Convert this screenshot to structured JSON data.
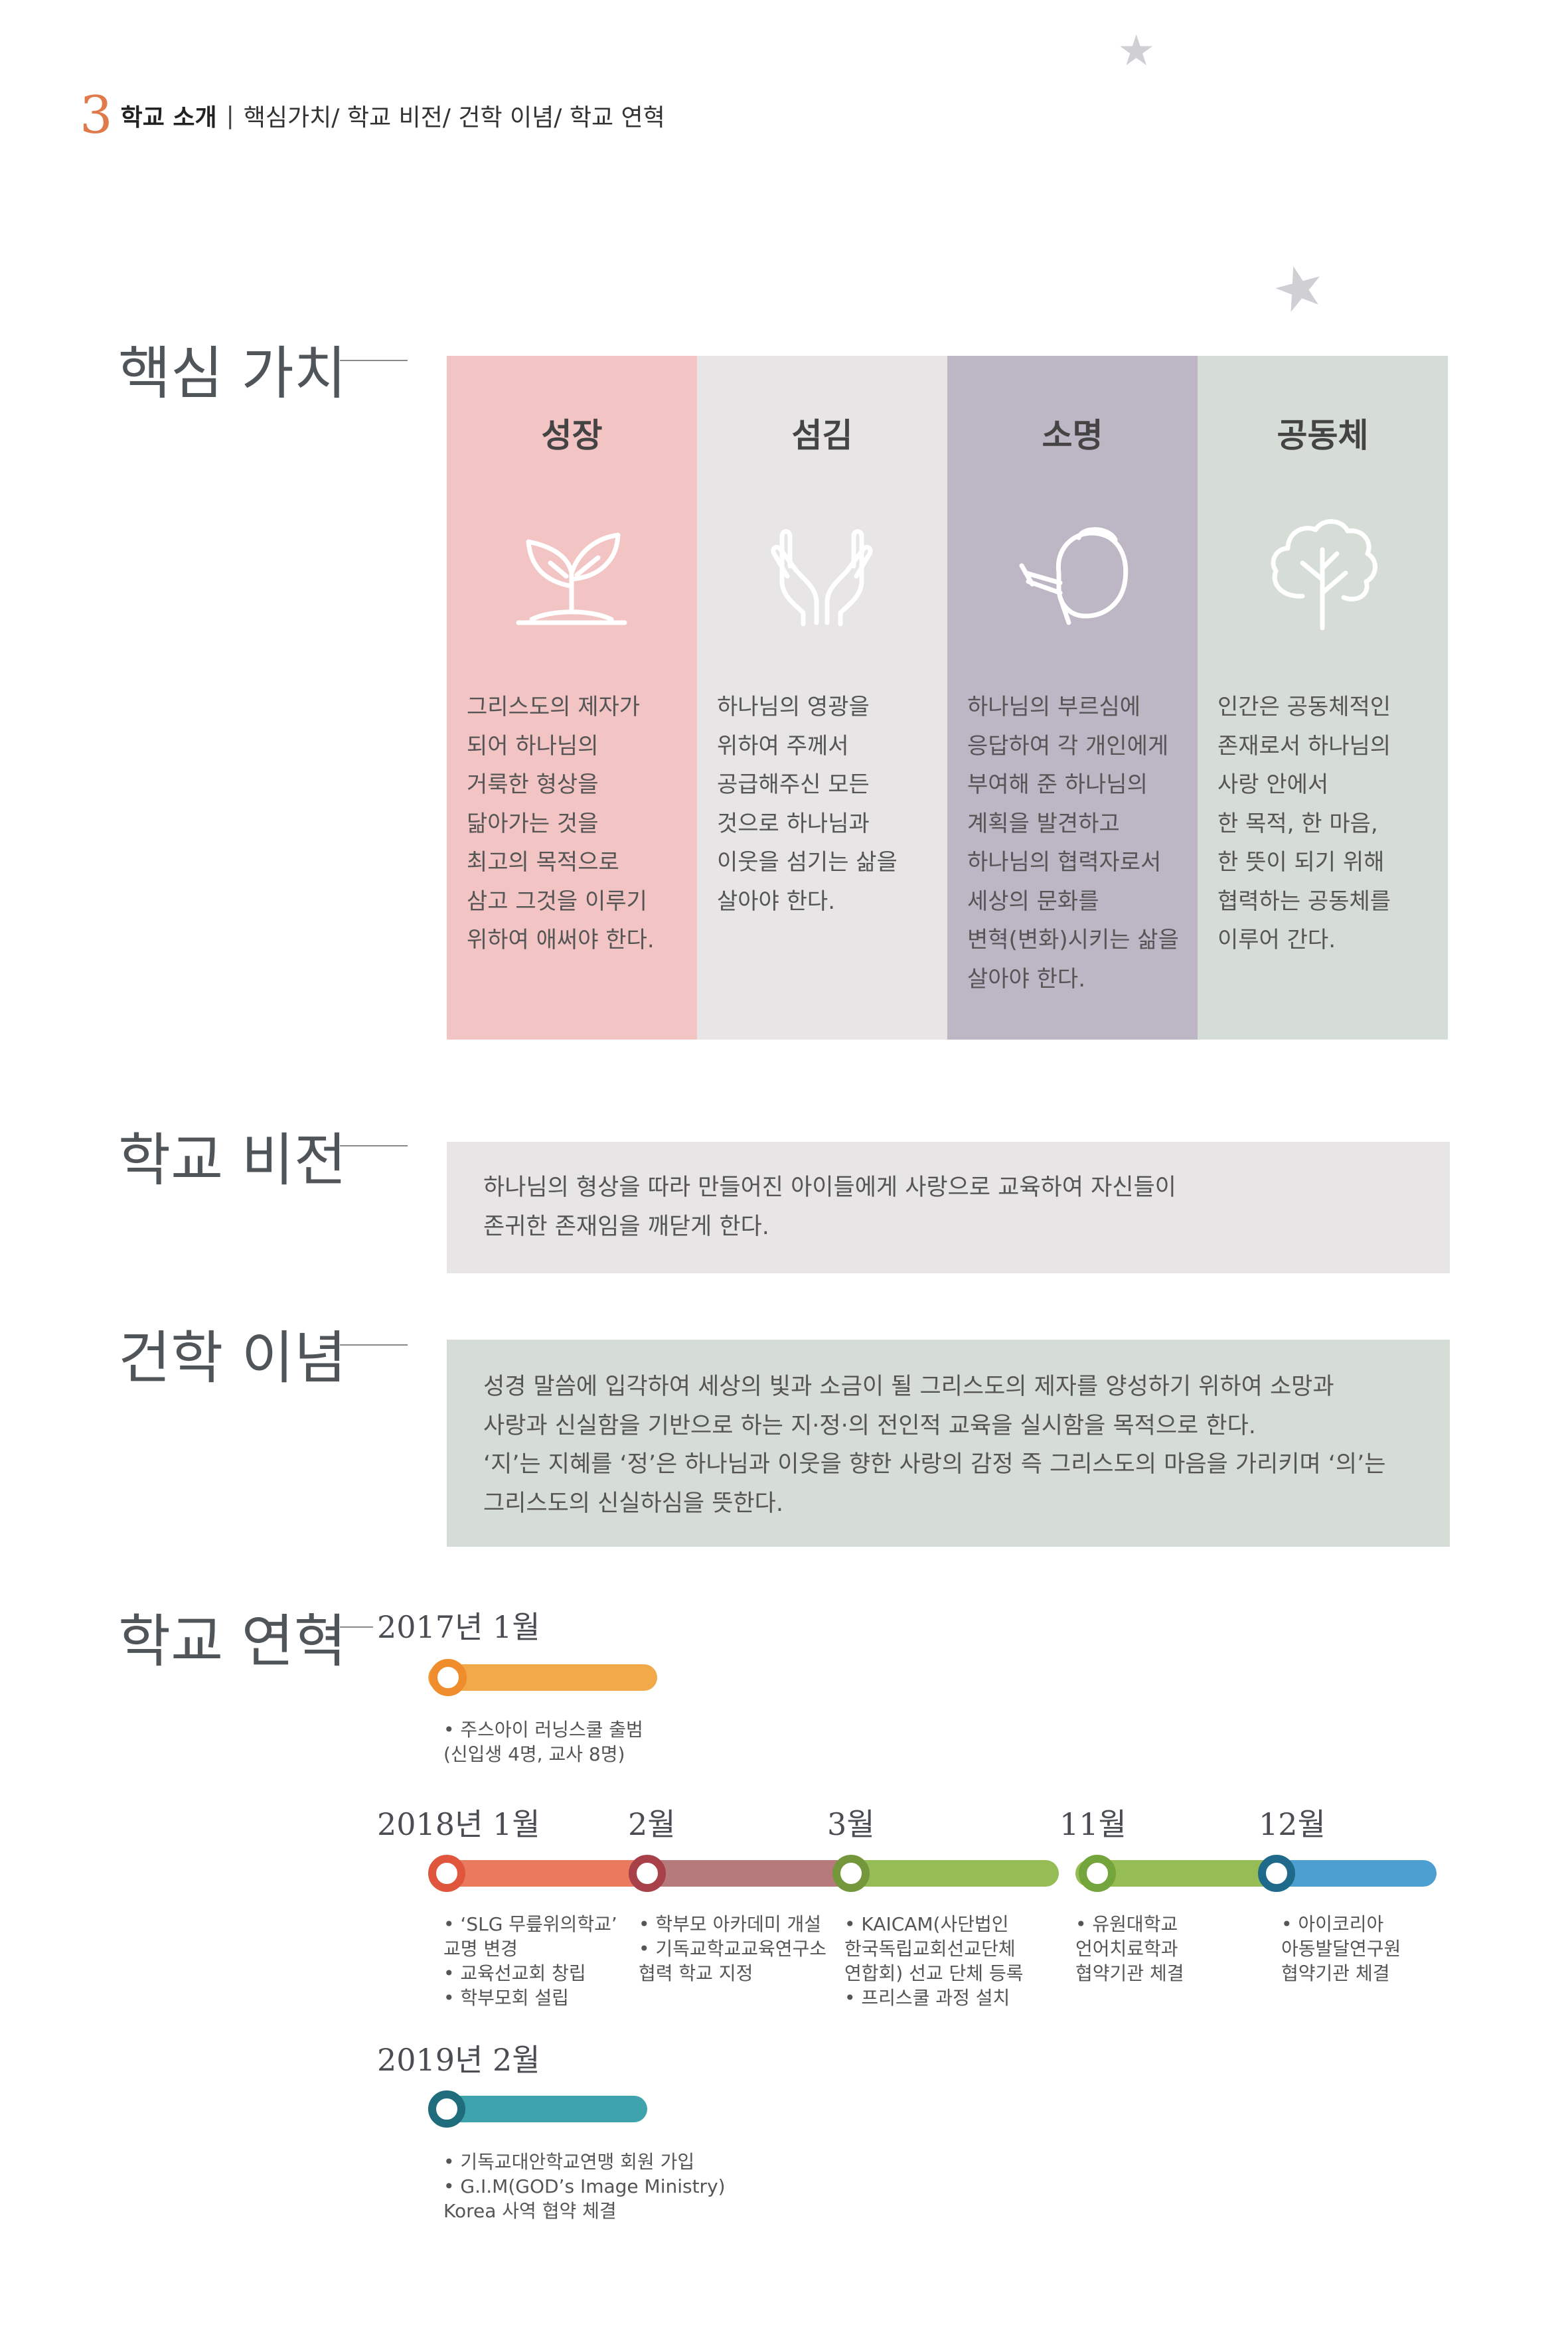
{
  "header": {
    "number": "3",
    "title": "학교 소개",
    "separator": "|",
    "subtitle": "핵심가치/ 학교 비전/ 건학 이념/ 학교 연혁"
  },
  "colors": {
    "growth": "#f2c4c4",
    "serve": "#e7e5e6",
    "calling": "#bcb6c5",
    "community": "#d6dcd6",
    "vision_bg": "#e7e5e6",
    "philosophy_bg": "#d6dcd6"
  },
  "core_values": {
    "heading": "핵심 가치",
    "items": [
      {
        "title": "성장",
        "icon": "sprout-icon",
        "text": "그리스도의 제자가\n되어 하나님의\n거룩한 형상을\n닮아가는 것을\n최고의 목적으로\n삼고 그것을 이루기\n위하여 애써야 한다."
      },
      {
        "title": "섬김",
        "icon": "open-hands-icon",
        "text": "하나님의 영광을\n위하여 주께서\n공급해주신 모든\n것으로 하나님과\n이웃을 섬기는 삶을\n살아야 한다."
      },
      {
        "title": "소명",
        "icon": "watering-can-icon",
        "text": "하나님의 부르심에\n응답하여 각 개인에게\n부여해 준 하나님의\n계획을 발견하고\n하나님의 협력자로서\n세상의 문화를\n변혁(변화)시키는 삶을\n살아야 한다."
      },
      {
        "title": "공동체",
        "icon": "tree-icon",
        "text": "인간은 공동체적인\n존재로서 하나님의\n사랑 안에서\n한 목적, 한 마음,\n한 뜻이 되기 위해\n협력하는 공동체를\n이루어 간다."
      }
    ]
  },
  "vision": {
    "heading": "학교 비전",
    "text": "하나님의 형상을 따라 만들어진 아이들에게 사랑으로 교육하여 자신들이\n존귀한 존재임을 깨닫게 한다."
  },
  "philosophy": {
    "heading": "건학 이념",
    "text": "성경 말씀에 입각하여 세상의 빛과 소금이 될 그리스도의 제자를 양성하기 위하여 소망과\n사랑과 신실함을 기반으로 하는 지·정·의 전인적 교육을 실시함을 목적으로 한다.\n‘지’는 지혜를 ‘정’은 하나님과 이웃을 향한 사랑의 감정 즉 그리스도의 마음을 가리키며 ‘의’는\n그리스도의 신실하심을 뜻한다."
  },
  "history": {
    "heading": "학교 연혁",
    "events": [
      {
        "date": "2017년 1월",
        "color": "#f2a94a",
        "text": "• 주스아이 러닝스쿨 출범\n  (신입생 4명, 교사 8명)"
      },
      {
        "date": "2018년 1월",
        "color": "#e97a5e",
        "text": "• ‘SLG 무릎위의학교’\n   교명 변경\n• 교육선교회 창립\n• 학부모회 설립"
      },
      {
        "date": "2월",
        "color": "#b77a7c",
        "text": "• 학부모 아카데미 개설\n• 기독교학교교육연구소\n   협력 학교 지정"
      },
      {
        "date": "3월",
        "color": "#96bd55",
        "text": "• KAICAM(사단법인\n   한국독립교회선교단체\n   연합회) 선교 단체 등록\n• 프리스쿨 과정 설치"
      },
      {
        "date": "11월",
        "color": "#96bd55",
        "text": "• 유원대학교\n   언어치료학과\n   협약기관 체결"
      },
      {
        "date": "12월",
        "color": "#4d9fd2",
        "text": "• 아이코리아\n   아동발달연구원\n   협약기관 체결"
      },
      {
        "date": "2019년 2월",
        "color": "#3ea3ad",
        "text": "• 기독교대안학교연맹 회원 가입\n• G.I.M(GOD’s Image Ministry)\n   Korea 사역 협약 체결"
      }
    ]
  }
}
